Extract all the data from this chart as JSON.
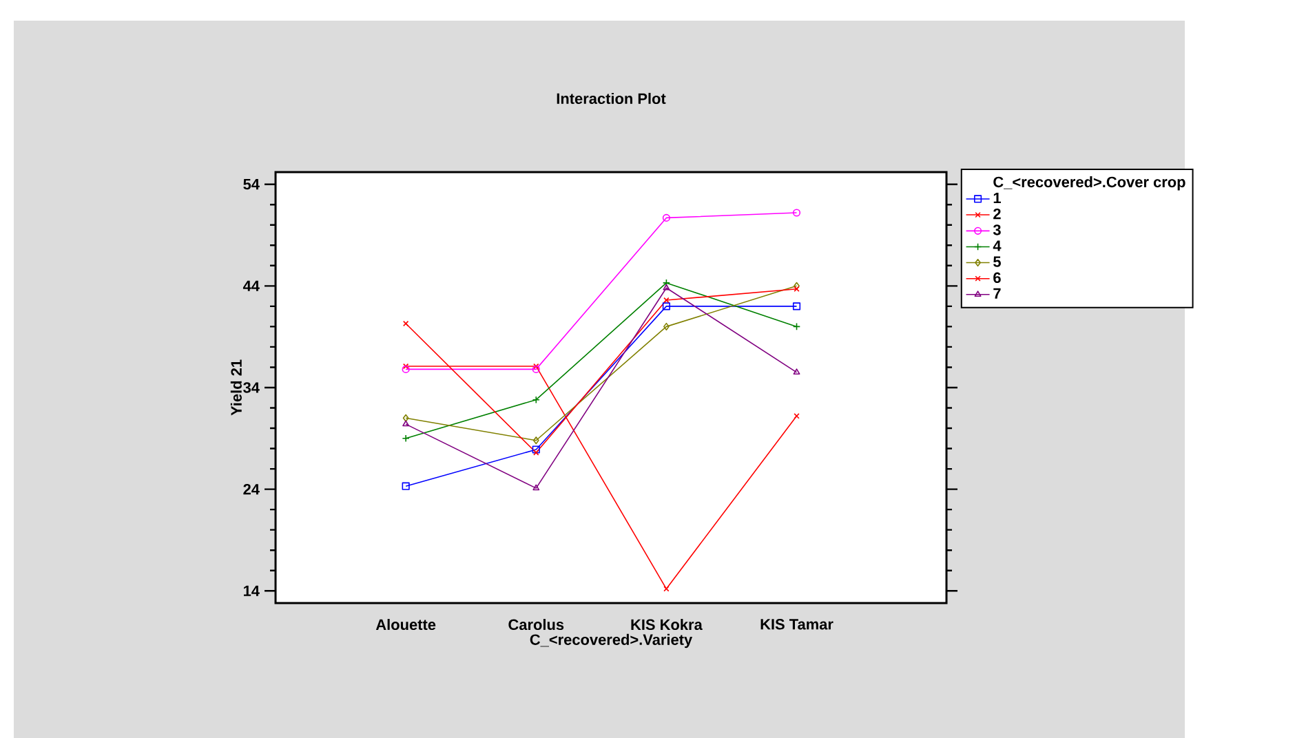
{
  "chart_data": {
    "type": "line",
    "title": "Interaction Plot",
    "xlabel": "C_<recovered>.Variety",
    "ylabel": "Yield 21",
    "legend_title": "C_<recovered>.Cover crop",
    "legend": "right",
    "categories": [
      "Alouette",
      "Carolus",
      "KIS Kokra",
      "KIS Tamar"
    ],
    "ylim": [
      12.8,
      55.2
    ],
    "yticks": [
      14,
      24,
      34,
      44,
      54
    ],
    "series": [
      {
        "name": "1",
        "color": "#0000ff",
        "marker": "square",
        "values": [
          24.3,
          27.9,
          42.0,
          42.0
        ]
      },
      {
        "name": "2",
        "color": "#ff0000",
        "marker": "cross",
        "values": [
          36.1,
          36.1,
          14.2,
          31.2
        ]
      },
      {
        "name": "3",
        "color": "#ff00ff",
        "marker": "circle",
        "values": [
          35.8,
          35.8,
          50.7,
          51.2
        ]
      },
      {
        "name": "4",
        "color": "#008000",
        "marker": "plus",
        "values": [
          29.0,
          32.8,
          44.3,
          40.0
        ]
      },
      {
        "name": "5",
        "color": "#808000",
        "marker": "diamond",
        "values": [
          31.0,
          28.8,
          40.0,
          44.0
        ]
      },
      {
        "name": "6",
        "color": "#ff0000",
        "marker": "cross",
        "values": [
          40.3,
          27.6,
          42.6,
          43.7
        ]
      },
      {
        "name": "7",
        "color": "#800080",
        "marker": "triangle",
        "values": [
          30.4,
          24.1,
          43.8,
          35.5
        ]
      }
    ]
  }
}
